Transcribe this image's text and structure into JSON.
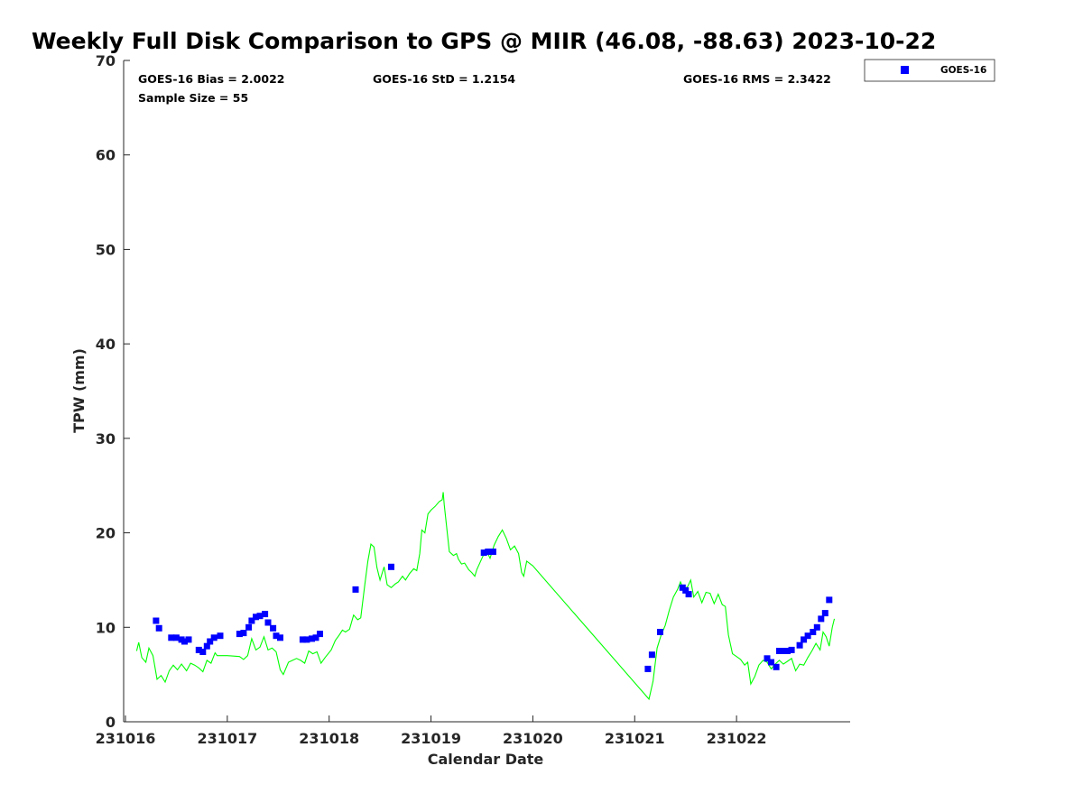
{
  "chart_data": {
    "type": "scatter",
    "title": "Weekly Full Disk Comparison to GPS @ MIIR (46.08, -88.63) 2023-10-22",
    "xlabel": "Calendar Date",
    "ylabel": "TPW (mm)",
    "xlim": [
      231016,
      231023
    ],
    "ylim": [
      0,
      70
    ],
    "x_ticks": [
      231016,
      231017,
      231018,
      231019,
      231020,
      231021,
      231022
    ],
    "x_tick_labels": [
      "231016",
      "231017",
      "231018",
      "231019",
      "231020",
      "231021",
      "231022"
    ],
    "y_ticks": [
      0,
      10,
      20,
      30,
      40,
      50,
      60,
      70
    ],
    "y_tick_labels": [
      "0",
      "10",
      "20",
      "30",
      "40",
      "50",
      "60",
      "70"
    ],
    "grid": false,
    "legend_position": "top-right, outside plot",
    "stats": {
      "bias": "GOES-16 Bias = 2.0022",
      "std": "GOES-16 StD = 1.2154",
      "rms": "GOES-16 RMS = 2.3422",
      "sample": "Sample Size = 55"
    },
    "series": [
      {
        "name": "GOES-16",
        "kind": "scatter",
        "marker": "square",
        "color": "#0000ff",
        "points": [
          [
            231016.3,
            10.7
          ],
          [
            231016.33,
            9.9
          ],
          [
            231016.45,
            8.9
          ],
          [
            231016.5,
            8.9
          ],
          [
            231016.55,
            8.7
          ],
          [
            231016.58,
            8.5
          ],
          [
            231016.62,
            8.7
          ],
          [
            231016.72,
            7.6
          ],
          [
            231016.76,
            7.4
          ],
          [
            231016.8,
            8.0
          ],
          [
            231016.83,
            8.5
          ],
          [
            231016.87,
            8.9
          ],
          [
            231016.93,
            9.1
          ],
          [
            231017.12,
            9.3
          ],
          [
            231017.16,
            9.4
          ],
          [
            231017.21,
            10.0
          ],
          [
            231017.24,
            10.7
          ],
          [
            231017.28,
            11.1
          ],
          [
            231017.32,
            11.2
          ],
          [
            231017.37,
            11.4
          ],
          [
            231017.4,
            10.5
          ],
          [
            231017.45,
            9.9
          ],
          [
            231017.48,
            9.1
          ],
          [
            231017.52,
            8.9
          ],
          [
            231017.74,
            8.7
          ],
          [
            231017.78,
            8.7
          ],
          [
            231017.83,
            8.8
          ],
          [
            231017.87,
            8.9
          ],
          [
            231017.91,
            9.3
          ],
          [
            231018.26,
            14.0
          ],
          [
            231018.61,
            16.4
          ],
          [
            231019.52,
            17.9
          ],
          [
            231019.56,
            18.0
          ],
          [
            231019.61,
            18.0
          ],
          [
            231021.13,
            5.6
          ],
          [
            231021.17,
            7.1
          ],
          [
            231021.25,
            9.5
          ],
          [
            231021.47,
            14.2
          ],
          [
            231021.5,
            13.9
          ],
          [
            231021.53,
            13.5
          ],
          [
            231022.3,
            6.7
          ],
          [
            231022.34,
            6.3
          ],
          [
            231022.39,
            5.8
          ],
          [
            231022.42,
            7.5
          ],
          [
            231022.46,
            7.5
          ],
          [
            231022.5,
            7.5
          ],
          [
            231022.54,
            7.6
          ],
          [
            231022.62,
            8.1
          ],
          [
            231022.66,
            8.7
          ],
          [
            231022.7,
            9.1
          ],
          [
            231022.75,
            9.5
          ],
          [
            231022.79,
            10.0
          ],
          [
            231022.83,
            10.9
          ],
          [
            231022.87,
            11.5
          ],
          [
            231022.91,
            12.9
          ]
        ]
      },
      {
        "kind": "line",
        "color": "#00ff00",
        "points": [
          [
            231016.11,
            7.5
          ],
          [
            231016.13,
            8.4
          ],
          [
            231016.16,
            6.8
          ],
          [
            231016.2,
            6.3
          ],
          [
            231016.23,
            7.8
          ],
          [
            231016.27,
            7.0
          ],
          [
            231016.31,
            4.5
          ],
          [
            231016.35,
            4.9
          ],
          [
            231016.39,
            4.2
          ],
          [
            231016.43,
            5.4
          ],
          [
            231016.47,
            6.0
          ],
          [
            231016.51,
            5.5
          ],
          [
            231016.55,
            6.1
          ],
          [
            231016.6,
            5.4
          ],
          [
            231016.64,
            6.2
          ],
          [
            231016.68,
            6.0
          ],
          [
            231016.72,
            5.7
          ],
          [
            231016.76,
            5.3
          ],
          [
            231016.8,
            6.5
          ],
          [
            231016.84,
            6.2
          ],
          [
            231016.88,
            7.3
          ],
          [
            231016.9,
            7.0
          ],
          [
            231017.0,
            7.0
          ],
          [
            231017.12,
            6.9
          ],
          [
            231017.16,
            6.6
          ],
          [
            231017.2,
            7.0
          ],
          [
            231017.24,
            8.8
          ],
          [
            231017.28,
            7.6
          ],
          [
            231017.32,
            7.9
          ],
          [
            231017.36,
            9.0
          ],
          [
            231017.4,
            7.6
          ],
          [
            231017.44,
            7.8
          ],
          [
            231017.48,
            7.4
          ],
          [
            231017.52,
            5.5
          ],
          [
            231017.55,
            5.0
          ],
          [
            231017.6,
            6.3
          ],
          [
            231017.64,
            6.5
          ],
          [
            231017.68,
            6.7
          ],
          [
            231017.72,
            6.5
          ],
          [
            231017.76,
            6.2
          ],
          [
            231017.8,
            7.5
          ],
          [
            231017.84,
            7.2
          ],
          [
            231017.88,
            7.4
          ],
          [
            231017.92,
            6.2
          ],
          [
            231017.96,
            6.8
          ],
          [
            231018.02,
            7.6
          ],
          [
            231018.06,
            8.6
          ],
          [
            231018.1,
            9.2
          ],
          [
            231018.13,
            9.7
          ],
          [
            231018.16,
            9.5
          ],
          [
            231018.2,
            9.8
          ],
          [
            231018.24,
            11.3
          ],
          [
            231018.28,
            10.8
          ],
          [
            231018.31,
            11.0
          ],
          [
            231018.35,
            14.5
          ],
          [
            231018.38,
            17.0
          ],
          [
            231018.41,
            18.8
          ],
          [
            231018.44,
            18.5
          ],
          [
            231018.47,
            16.3
          ],
          [
            231018.5,
            15.0
          ],
          [
            231018.54,
            16.4
          ],
          [
            231018.57,
            14.5
          ],
          [
            231018.61,
            14.2
          ],
          [
            231018.65,
            14.6
          ],
          [
            231018.68,
            14.8
          ],
          [
            231018.72,
            15.4
          ],
          [
            231018.75,
            15.0
          ],
          [
            231018.79,
            15.7
          ],
          [
            231018.83,
            16.2
          ],
          [
            231018.86,
            16.0
          ],
          [
            231018.89,
            17.8
          ],
          [
            231018.91,
            20.3
          ],
          [
            231018.94,
            20.0
          ],
          [
            231018.97,
            22.0
          ],
          [
            231019.0,
            22.4
          ],
          [
            231019.04,
            22.8
          ],
          [
            231019.08,
            23.3
          ],
          [
            231019.11,
            23.5
          ],
          [
            231019.12,
            24.3
          ],
          [
            231019.13,
            23.0
          ],
          [
            231019.16,
            20.0
          ],
          [
            231019.18,
            18.0
          ],
          [
            231019.22,
            17.6
          ],
          [
            231019.25,
            17.8
          ],
          [
            231019.27,
            17.2
          ],
          [
            231019.3,
            16.7
          ],
          [
            231019.33,
            16.8
          ],
          [
            231019.37,
            16.1
          ],
          [
            231019.4,
            15.8
          ],
          [
            231019.43,
            15.4
          ],
          [
            231019.45,
            16.1
          ],
          [
            231019.5,
            17.3
          ],
          [
            231019.54,
            18.2
          ],
          [
            231019.58,
            17.3
          ],
          [
            231019.62,
            18.7
          ],
          [
            231019.66,
            19.6
          ],
          [
            231019.7,
            20.3
          ],
          [
            231019.74,
            19.4
          ],
          [
            231019.78,
            18.2
          ],
          [
            231019.82,
            18.6
          ],
          [
            231019.86,
            17.8
          ],
          [
            231019.89,
            15.8
          ],
          [
            231019.91,
            15.4
          ],
          [
            231019.94,
            17.0
          ],
          [
            231020.0,
            16.5
          ],
          [
            231021.14,
            2.4
          ],
          [
            231021.18,
            4.3
          ],
          [
            231021.22,
            7.8
          ],
          [
            231021.26,
            9.2
          ],
          [
            231021.3,
            10.2
          ],
          [
            231021.34,
            11.8
          ],
          [
            231021.38,
            13.2
          ],
          [
            231021.42,
            14.0
          ],
          [
            231021.45,
            14.8
          ],
          [
            231021.48,
            14.0
          ],
          [
            231021.52,
            14.3
          ],
          [
            231021.55,
            15.0
          ],
          [
            231021.58,
            13.2
          ],
          [
            231021.62,
            13.8
          ],
          [
            231021.66,
            12.6
          ],
          [
            231021.7,
            13.7
          ],
          [
            231021.74,
            13.6
          ],
          [
            231021.78,
            12.5
          ],
          [
            231021.82,
            13.5
          ],
          [
            231021.86,
            12.4
          ],
          [
            231021.89,
            12.2
          ],
          [
            231021.92,
            9.2
          ],
          [
            231021.96,
            7.2
          ],
          [
            231022.0,
            6.9
          ],
          [
            231022.04,
            6.6
          ],
          [
            231022.08,
            6.0
          ],
          [
            231022.11,
            6.3
          ],
          [
            231022.14,
            4.0
          ],
          [
            231022.18,
            4.8
          ],
          [
            231022.22,
            6.0
          ],
          [
            231022.26,
            6.5
          ],
          [
            231022.3,
            6.3
          ],
          [
            231022.34,
            5.6
          ],
          [
            231022.38,
            6.1
          ],
          [
            231022.42,
            6.5
          ],
          [
            231022.46,
            6.1
          ],
          [
            231022.5,
            6.4
          ],
          [
            231022.54,
            6.7
          ],
          [
            231022.58,
            5.4
          ],
          [
            231022.62,
            6.1
          ],
          [
            231022.66,
            6.0
          ],
          [
            231022.7,
            6.8
          ],
          [
            231022.74,
            7.5
          ],
          [
            231022.78,
            8.3
          ],
          [
            231022.82,
            7.6
          ],
          [
            231022.85,
            9.5
          ],
          [
            231022.88,
            9.0
          ],
          [
            231022.91,
            8.0
          ],
          [
            231022.94,
            10.0
          ],
          [
            231022.96,
            10.9
          ]
        ]
      }
    ]
  }
}
